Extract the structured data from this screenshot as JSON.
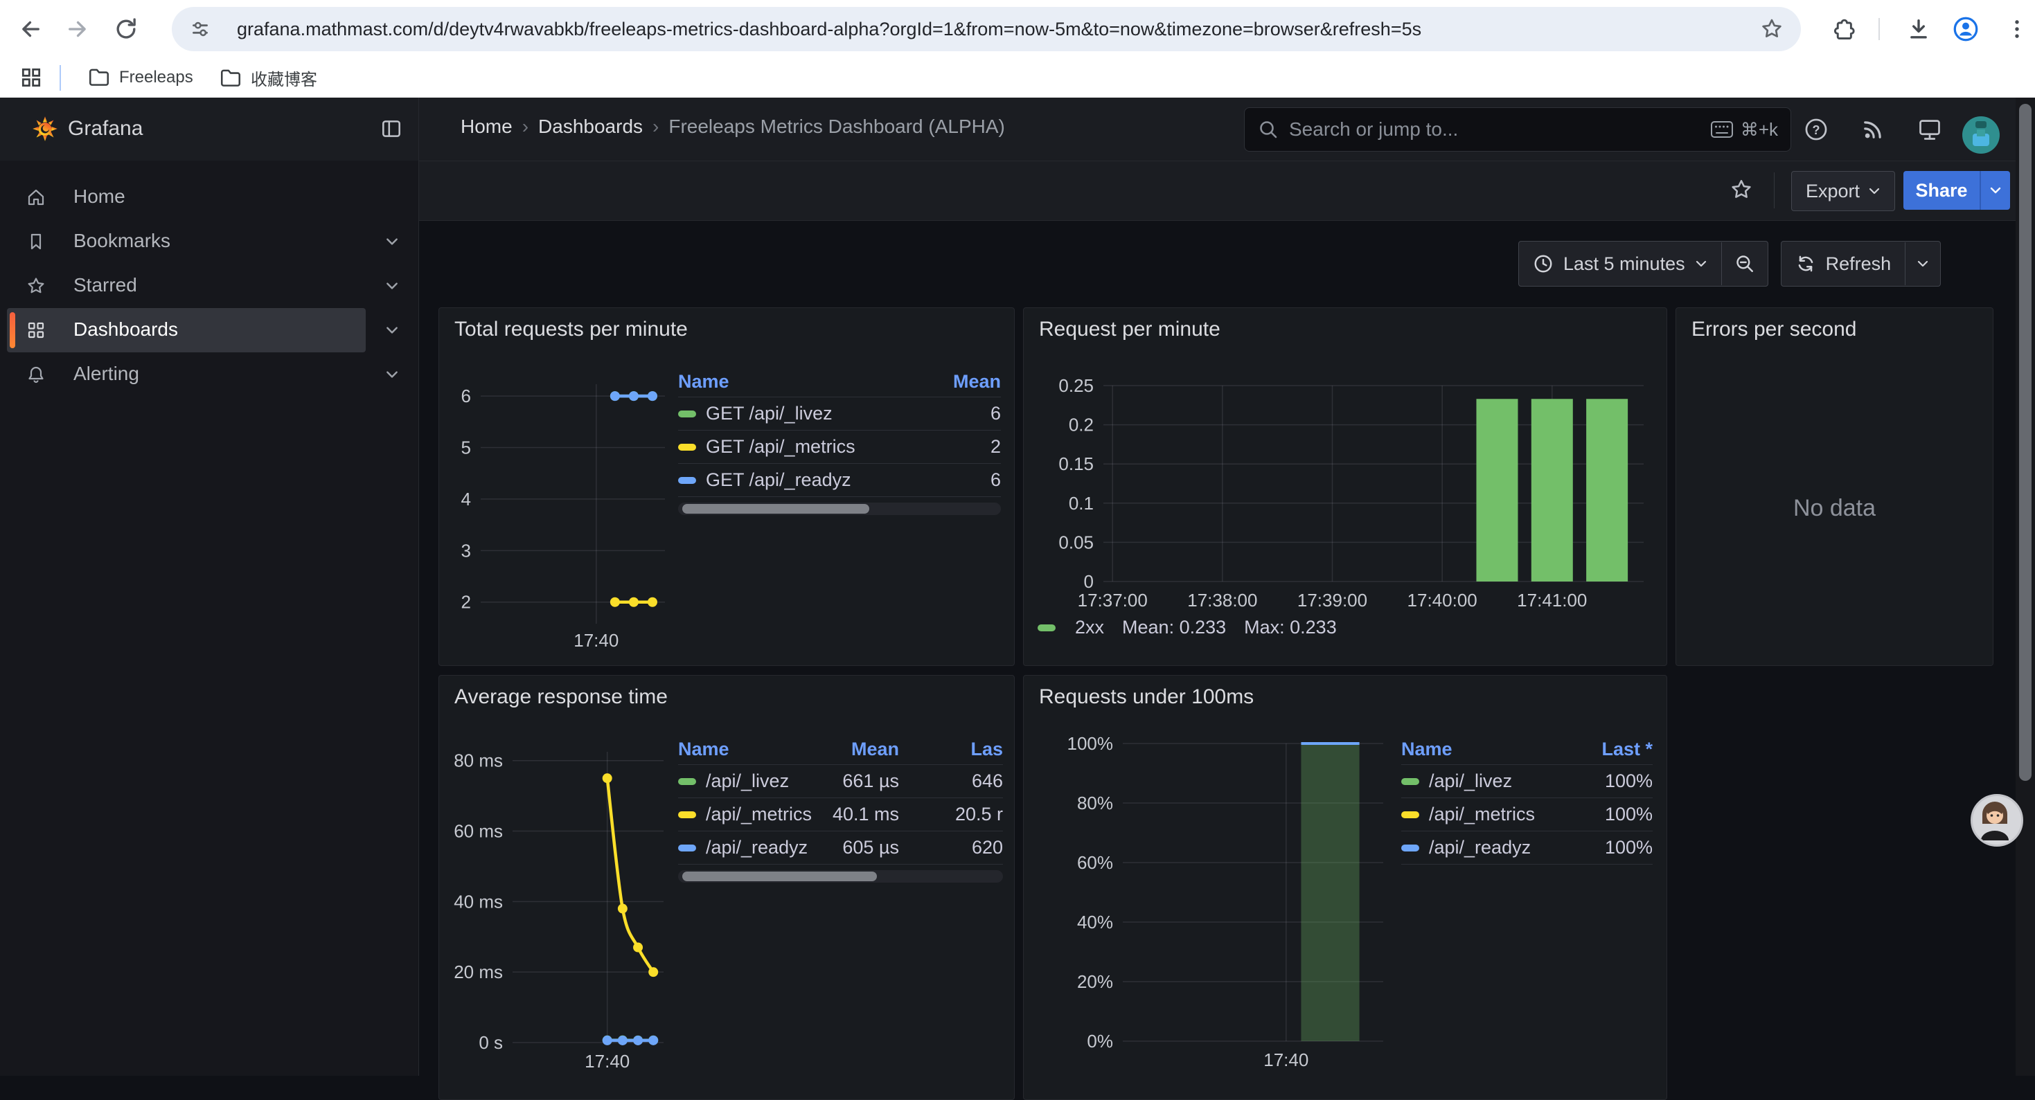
{
  "browser": {
    "url": "grafana.mathmast.com/d/deytv4rwavabkb/freeleaps-metrics-dashboard-alpha?orgId=1&from=now-5m&to=now&timezone=browser&refresh=5s",
    "bookmarks": [
      {
        "label": "Freeleaps"
      },
      {
        "label": "收藏博客"
      }
    ]
  },
  "header": {
    "brand": "Grafana",
    "breadcrumb": [
      "Home",
      "Dashboards",
      "Freeleaps Metrics Dashboard (ALPHA)"
    ],
    "breadcrumb_separator": "›",
    "search_placeholder": "Search or jump to...",
    "search_shortcut": "⌘+k"
  },
  "sidebar": {
    "items": [
      {
        "label": "Home",
        "selected": false,
        "expandable": false
      },
      {
        "label": "Bookmarks",
        "selected": false,
        "expandable": true
      },
      {
        "label": "Starred",
        "selected": false,
        "expandable": true
      },
      {
        "label": "Dashboards",
        "selected": true,
        "expandable": true
      },
      {
        "label": "Alerting",
        "selected": false,
        "expandable": true
      }
    ]
  },
  "toolbar": {
    "export_label": "Export",
    "share_label": "Share"
  },
  "timebar": {
    "range_label": "Last 5 minutes",
    "refresh_label": "Refresh"
  },
  "colors": {
    "green": "#73bf69",
    "yellow": "#fade2a",
    "blue": "#6ea6f9",
    "share_blue": "#3d71d9",
    "accent_orange": "#f55f3e",
    "legend_header_blue": "#6e9fff"
  },
  "chart_data": [
    {
      "panel": "total-requests-per-minute",
      "type": "line",
      "title": "Total requests per minute",
      "x_range": [
        "17:36:55",
        "17:41:50"
      ],
      "x_ticks": [
        {
          "t": "17:40:00",
          "label": "17:40"
        }
      ],
      "ylim": [
        1.58,
        6.23
      ],
      "y_ticks": [
        2,
        3,
        4,
        5,
        6
      ],
      "grid": true,
      "legend_position": "right-table",
      "series": [
        {
          "name": "GET /api/_livez",
          "color": "#73bf69",
          "points": [
            [
              "17:40:30",
              6
            ],
            [
              "17:41:00",
              6
            ],
            [
              "17:41:30",
              6
            ]
          ]
        },
        {
          "name": "GET /api/_metrics",
          "color": "#fade2a",
          "points": [
            [
              "17:40:30",
              2
            ],
            [
              "17:41:00",
              2
            ],
            [
              "17:41:30",
              2
            ]
          ]
        },
        {
          "name": "GET /api/_readyz",
          "color": "#6ea6f9",
          "points": [
            [
              "17:40:30",
              6
            ],
            [
              "17:41:00",
              6
            ],
            [
              "17:41:30",
              6
            ]
          ]
        }
      ],
      "legend": {
        "cols": [
          "Name",
          "Mean"
        ],
        "rows": [
          {
            "name": "GET /api/_livez",
            "mean": "6"
          },
          {
            "name": "GET /api/_metrics",
            "mean": "2"
          },
          {
            "name": "GET /api/_readyz",
            "mean": "6"
          }
        ]
      }
    },
    {
      "panel": "request-per-minute",
      "type": "bar",
      "title": "Request per minute",
      "x_range": [
        "17:36:55",
        "17:41:50"
      ],
      "x_ticks": [
        {
          "t": "17:37:00",
          "label": "17:37:00"
        },
        {
          "t": "17:38:00",
          "label": "17:38:00"
        },
        {
          "t": "17:39:00",
          "label": "17:39:00"
        },
        {
          "t": "17:40:00",
          "label": "17:40:00"
        },
        {
          "t": "17:41:00",
          "label": "17:41:00"
        }
      ],
      "ylim": [
        0,
        0.25
      ],
      "y_ticks": [
        0,
        0.05,
        0.1,
        0.15,
        0.2,
        0.25
      ],
      "y_tick_labels": [
        "0",
        "0.05",
        "0.1",
        "0.15",
        "0.2",
        "0.25"
      ],
      "grid": true,
      "bar_color": "#73bf69",
      "bar_width_s": 23,
      "bars": [
        [
          "17:40:30",
          0.233
        ],
        [
          "17:41:00",
          0.233
        ],
        [
          "17:41:30",
          0.233
        ]
      ],
      "legend_position": "bottom",
      "legend": {
        "color": "#73bf69",
        "label": "2xx",
        "mean_text": "Mean: 0.233",
        "max_text": "Max: 0.233"
      }
    },
    {
      "panel": "errors-per-second",
      "type": "none",
      "title": "Errors per second",
      "message": "No data"
    },
    {
      "panel": "average-response-time",
      "type": "line",
      "title": "Average response time",
      "x_range": [
        "17:36:55",
        "17:41:50"
      ],
      "x_ticks": [
        {
          "t": "17:40:00",
          "label": "17:40"
        }
      ],
      "ylim": [
        0,
        82.5
      ],
      "ylabel_unit": "ms",
      "y_ticks": [
        0,
        20,
        40,
        60,
        80
      ],
      "y_tick_labels": [
        "0 s",
        "20 ms",
        "40 ms",
        "60 ms",
        "80 ms"
      ],
      "grid": true,
      "legend_position": "right-table",
      "series": [
        {
          "name": "/api/_livez",
          "color": "#73bf69",
          "points": [
            [
              "17:40:00",
              0.66
            ],
            [
              "17:40:30",
              0.66
            ],
            [
              "17:41:00",
              0.65
            ],
            [
              "17:41:30",
              0.65
            ]
          ]
        },
        {
          "name": "/api/_readyz",
          "color": "#6ea6f9",
          "points": [
            [
              "17:40:00",
              0.61
            ],
            [
              "17:40:30",
              0.6
            ],
            [
              "17:41:00",
              0.6
            ],
            [
              "17:41:30",
              0.62
            ]
          ]
        },
        {
          "name": "/api/_metrics",
          "color": "#fade2a",
          "smooth": true,
          "points": [
            [
              "17:40:00",
              75
            ],
            [
              "17:40:30",
              38
            ],
            [
              "17:41:00",
              27
            ],
            [
              "17:41:30",
              20
            ]
          ]
        }
      ],
      "legend": {
        "cols": [
          "Name",
          "Mean",
          "Las"
        ],
        "rows": [
          {
            "name": "/api/_livez",
            "mean": "661 µs",
            "last": "646"
          },
          {
            "name": "/api/_metrics",
            "mean": "40.1 ms",
            "last": "20.5 r"
          },
          {
            "name": "/api/_readyz",
            "mean": "605 µs",
            "last": "620"
          }
        ]
      }
    },
    {
      "panel": "requests-under-100ms",
      "type": "area-bar",
      "title": "Requests under 100ms",
      "x_range": [
        "17:36:55",
        "17:41:50"
      ],
      "x_ticks": [
        {
          "t": "17:40:00",
          "label": "17:40"
        }
      ],
      "ylim": [
        0,
        100
      ],
      "y_ticks": [
        0,
        20,
        40,
        60,
        80,
        100
      ],
      "y_tick_labels": [
        "0%",
        "20%",
        "40%",
        "60%",
        "80%",
        "100%"
      ],
      "grid": true,
      "band": {
        "from": "17:40:17",
        "to": "17:41:23",
        "v": 100,
        "fill": "rgba(115,191,105,0.30)",
        "cap_color": "#6ea6f9"
      },
      "legend_position": "right-table",
      "legend": {
        "cols": [
          "Name",
          "Last *"
        ],
        "rows": [
          {
            "name": "/api/_livez",
            "color": "#73bf69",
            "last": "100%"
          },
          {
            "name": "/api/_metrics",
            "color": "#fade2a",
            "last": "100%"
          },
          {
            "name": "/api/_readyz",
            "color": "#6ea6f9",
            "last": "100%"
          }
        ]
      }
    }
  ]
}
